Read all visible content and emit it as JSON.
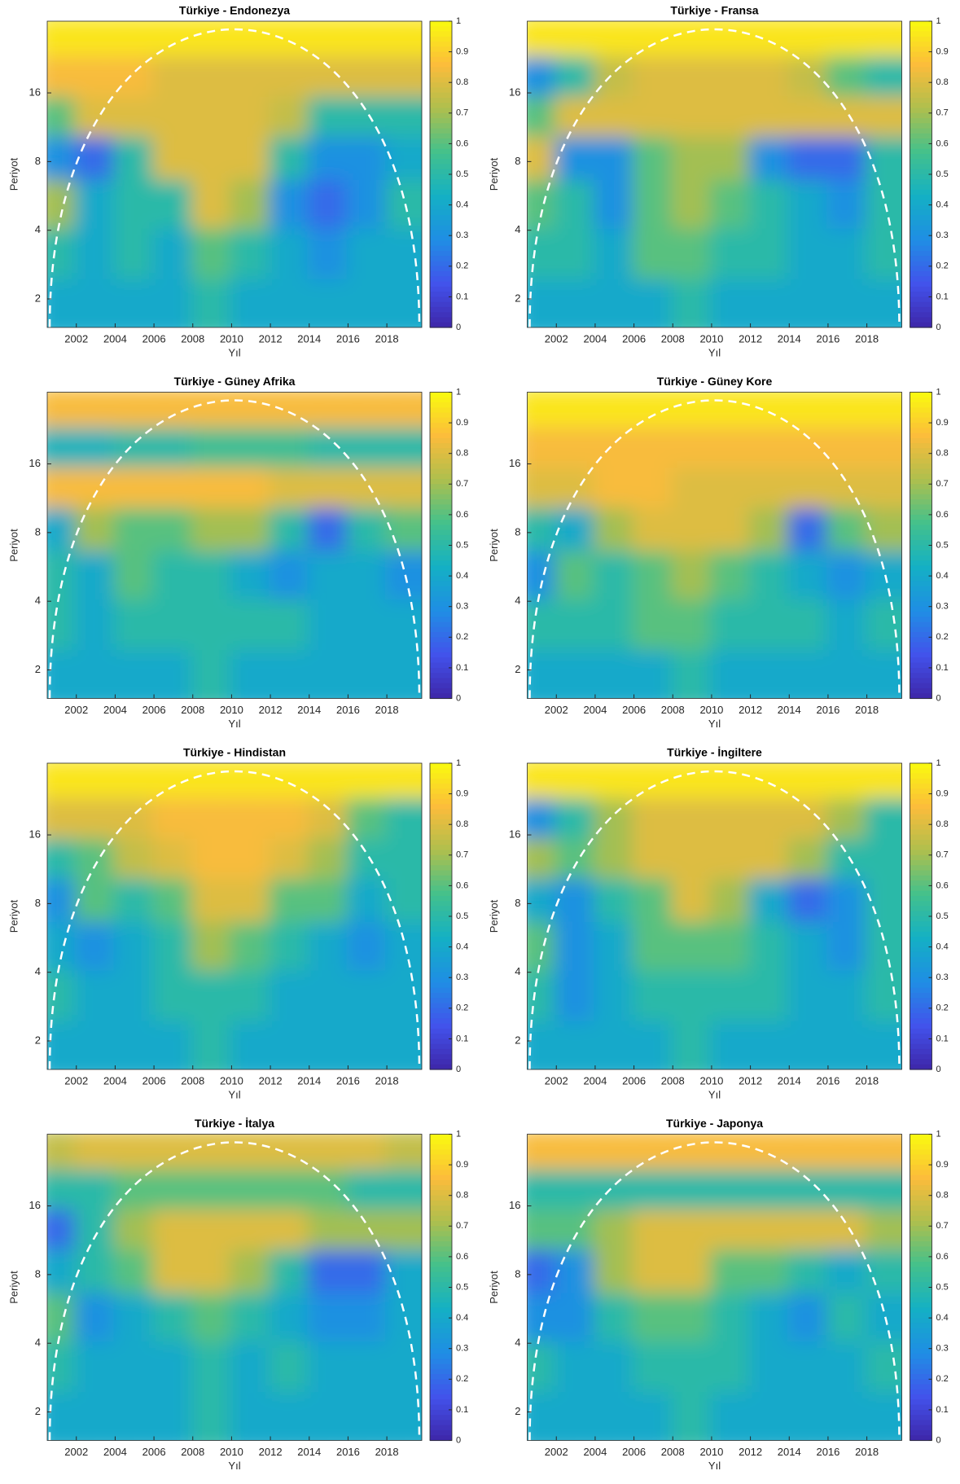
{
  "chart_data": [
    {
      "type": "wavelet_coherence",
      "title": "Türkiye - Endonezya",
      "xlabel": "Yıl",
      "ylabel": "Periyot",
      "xlim": [
        2000.5,
        2019.8
      ],
      "xticks": [
        2002,
        2004,
        2006,
        2008,
        2010,
        2012,
        2014,
        2016,
        2018
      ],
      "ylim": [
        1.5,
        33
      ],
      "yticks": [
        2,
        4,
        8,
        16
      ],
      "ylog": true,
      "clim": [
        0,
        1
      ],
      "cticks": [
        0,
        0.1,
        0.2,
        0.3,
        0.4,
        0.5,
        0.6,
        0.7,
        0.8,
        0.9,
        1
      ],
      "colormap": [
        "#3e26a8",
        "#4253ec",
        "#1f8ee4",
        "#14b0c4",
        "#43c18c",
        "#aebf4d",
        "#fcbc3b",
        "#f9fb0e"
      ],
      "x": [
        2001.5,
        2003.5,
        2005.5,
        2007.5,
        2009.5,
        2011.5,
        2013.5,
        2015.5,
        2017.5,
        2019.5
      ],
      "periods": [
        27,
        18,
        12,
        8,
        5,
        3,
        1.8
      ],
      "z": [
        [
          0.95,
          0.95,
          0.95,
          0.95,
          0.95,
          0.95,
          0.95,
          0.95,
          0.95,
          0.95
        ],
        [
          0.85,
          0.85,
          0.85,
          0.8,
          0.8,
          0.8,
          0.8,
          0.8,
          0.8,
          0.8
        ],
        [
          0.6,
          0.8,
          0.8,
          0.8,
          0.8,
          0.8,
          0.75,
          0.5,
          0.5,
          0.5
        ],
        [
          0.3,
          0.2,
          0.5,
          0.8,
          0.8,
          0.8,
          0.5,
          0.3,
          0.3,
          0.4
        ],
        [
          0.7,
          0.4,
          0.5,
          0.5,
          0.8,
          0.7,
          0.3,
          0.2,
          0.3,
          0.5
        ],
        [
          0.5,
          0.4,
          0.5,
          0.4,
          0.6,
          0.5,
          0.4,
          0.3,
          0.4,
          0.4
        ],
        [
          0.4,
          0.4,
          0.4,
          0.4,
          0.5,
          0.4,
          0.4,
          0.4,
          0.4,
          0.4
        ]
      ]
    },
    {
      "type": "wavelet_coherence",
      "title": "Türkiye - Fransa",
      "xlabel": "Yıl",
      "ylabel": "Periyot",
      "xlim": [
        2000.5,
        2019.8
      ],
      "xticks": [
        2002,
        2004,
        2006,
        2008,
        2010,
        2012,
        2014,
        2016,
        2018
      ],
      "ylim": [
        1.5,
        33
      ],
      "yticks": [
        2,
        4,
        8,
        16
      ],
      "ylog": true,
      "clim": [
        0,
        1
      ],
      "cticks": [
        0,
        0.1,
        0.2,
        0.3,
        0.4,
        0.5,
        0.6,
        0.7,
        0.8,
        0.9,
        1
      ],
      "colormap": [
        "#3e26a8",
        "#4253ec",
        "#1f8ee4",
        "#14b0c4",
        "#43c18c",
        "#aebf4d",
        "#fcbc3b",
        "#f9fb0e"
      ],
      "x": [
        2001.5,
        2003.5,
        2005.5,
        2007.5,
        2009.5,
        2011.5,
        2013.5,
        2015.5,
        2017.5,
        2019.5
      ],
      "periods": [
        27,
        18,
        12,
        8,
        5,
        3,
        1.8
      ],
      "z": [
        [
          0.95,
          0.95,
          0.95,
          0.95,
          0.95,
          0.95,
          0.95,
          0.95,
          0.95,
          0.95
        ],
        [
          0.3,
          0.5,
          0.75,
          0.8,
          0.8,
          0.8,
          0.8,
          0.75,
          0.6,
          0.5
        ],
        [
          0.6,
          0.8,
          0.8,
          0.8,
          0.8,
          0.8,
          0.8,
          0.8,
          0.8,
          0.8
        ],
        [
          0.8,
          0.3,
          0.3,
          0.6,
          0.7,
          0.7,
          0.3,
          0.2,
          0.2,
          0.5
        ],
        [
          0.6,
          0.5,
          0.3,
          0.6,
          0.7,
          0.6,
          0.5,
          0.4,
          0.3,
          0.5
        ],
        [
          0.5,
          0.5,
          0.4,
          0.6,
          0.6,
          0.5,
          0.5,
          0.4,
          0.4,
          0.5
        ],
        [
          0.4,
          0.4,
          0.4,
          0.4,
          0.5,
          0.4,
          0.4,
          0.4,
          0.4,
          0.4
        ]
      ]
    },
    {
      "type": "wavelet_coherence",
      "title": "Türkiye - Güney Afrika",
      "xlabel": "Yıl",
      "ylabel": "Periyot",
      "xlim": [
        2000.5,
        2019.8
      ],
      "xticks": [
        2002,
        2004,
        2006,
        2008,
        2010,
        2012,
        2014,
        2016,
        2018
      ],
      "ylim": [
        1.5,
        33
      ],
      "yticks": [
        2,
        4,
        8,
        16
      ],
      "ylog": true,
      "clim": [
        0,
        1
      ],
      "cticks": [
        0,
        0.1,
        0.2,
        0.3,
        0.4,
        0.5,
        0.6,
        0.7,
        0.8,
        0.9,
        1
      ],
      "colormap": [
        "#3e26a8",
        "#4253ec",
        "#1f8ee4",
        "#14b0c4",
        "#43c18c",
        "#aebf4d",
        "#fcbc3b",
        "#f9fb0e"
      ],
      "x": [
        2001.5,
        2003.5,
        2005.5,
        2007.5,
        2009.5,
        2011.5,
        2013.5,
        2015.5,
        2017.5,
        2019.5
      ],
      "periods": [
        27,
        18,
        12,
        8,
        5,
        3,
        1.8
      ],
      "z": [
        [
          0.85,
          0.85,
          0.85,
          0.85,
          0.85,
          0.85,
          0.85,
          0.85,
          0.85,
          0.85
        ],
        [
          0.45,
          0.45,
          0.5,
          0.5,
          0.55,
          0.55,
          0.55,
          0.5,
          0.5,
          0.5
        ],
        [
          0.85,
          0.85,
          0.85,
          0.85,
          0.85,
          0.85,
          0.8,
          0.8,
          0.8,
          0.8
        ],
        [
          0.4,
          0.7,
          0.6,
          0.6,
          0.7,
          0.7,
          0.5,
          0.2,
          0.5,
          0.6
        ],
        [
          0.5,
          0.4,
          0.6,
          0.5,
          0.5,
          0.4,
          0.3,
          0.4,
          0.4,
          0.3
        ],
        [
          0.5,
          0.4,
          0.5,
          0.5,
          0.5,
          0.5,
          0.5,
          0.4,
          0.4,
          0.4
        ],
        [
          0.4,
          0.4,
          0.4,
          0.4,
          0.5,
          0.4,
          0.4,
          0.4,
          0.4,
          0.4
        ]
      ]
    },
    {
      "type": "wavelet_coherence",
      "title": "Türkiye - Güney Kore",
      "xlabel": "Yıl",
      "ylabel": "Periyot",
      "xlim": [
        2000.5,
        2019.8
      ],
      "xticks": [
        2002,
        2004,
        2006,
        2008,
        2010,
        2012,
        2014,
        2016,
        2018
      ],
      "ylim": [
        1.5,
        33
      ],
      "yticks": [
        2,
        4,
        8,
        16
      ],
      "ylog": true,
      "clim": [
        0,
        1
      ],
      "cticks": [
        0,
        0.1,
        0.2,
        0.3,
        0.4,
        0.5,
        0.6,
        0.7,
        0.8,
        0.9,
        1
      ],
      "colormap": [
        "#3e26a8",
        "#4253ec",
        "#1f8ee4",
        "#14b0c4",
        "#43c18c",
        "#aebf4d",
        "#fcbc3b",
        "#f9fb0e"
      ],
      "x": [
        2001.5,
        2003.5,
        2005.5,
        2007.5,
        2009.5,
        2011.5,
        2013.5,
        2015.5,
        2017.5,
        2019.5
      ],
      "periods": [
        27,
        18,
        12,
        8,
        5,
        3,
        1.8
      ],
      "z": [
        [
          0.95,
          0.95,
          0.95,
          0.95,
          0.95,
          0.95,
          0.95,
          0.95,
          0.95,
          0.95
        ],
        [
          0.85,
          0.85,
          0.85,
          0.85,
          0.85,
          0.85,
          0.85,
          0.85,
          0.85,
          0.85
        ],
        [
          0.8,
          0.8,
          0.85,
          0.85,
          0.8,
          0.8,
          0.8,
          0.8,
          0.8,
          0.8
        ],
        [
          0.5,
          0.4,
          0.7,
          0.8,
          0.8,
          0.8,
          0.7,
          0.2,
          0.6,
          0.7
        ],
        [
          0.3,
          0.6,
          0.5,
          0.6,
          0.7,
          0.6,
          0.5,
          0.4,
          0.3,
          0.4
        ],
        [
          0.5,
          0.5,
          0.5,
          0.6,
          0.6,
          0.5,
          0.5,
          0.5,
          0.4,
          0.5
        ],
        [
          0.4,
          0.4,
          0.4,
          0.4,
          0.5,
          0.4,
          0.4,
          0.4,
          0.4,
          0.4
        ]
      ]
    },
    {
      "type": "wavelet_coherence",
      "title": "Türkiye - Hindistan",
      "xlabel": "Yıl",
      "ylabel": "Periyot",
      "xlim": [
        2000.5,
        2019.8
      ],
      "xticks": [
        2002,
        2004,
        2006,
        2008,
        2010,
        2012,
        2014,
        2016,
        2018
      ],
      "ylim": [
        1.5,
        33
      ],
      "yticks": [
        2,
        4,
        8,
        16
      ],
      "ylog": true,
      "clim": [
        0,
        1
      ],
      "cticks": [
        0,
        0.1,
        0.2,
        0.3,
        0.4,
        0.5,
        0.6,
        0.7,
        0.8,
        0.9,
        1
      ],
      "colormap": [
        "#3e26a8",
        "#4253ec",
        "#1f8ee4",
        "#14b0c4",
        "#43c18c",
        "#aebf4d",
        "#fcbc3b",
        "#f9fb0e"
      ],
      "x": [
        2001.5,
        2003.5,
        2005.5,
        2007.5,
        2009.5,
        2011.5,
        2013.5,
        2015.5,
        2017.5,
        2019.5
      ],
      "periods": [
        27,
        18,
        12,
        8,
        5,
        3,
        1.8
      ],
      "z": [
        [
          0.95,
          0.95,
          0.95,
          0.95,
          0.95,
          0.95,
          0.95,
          0.95,
          0.95,
          0.95
        ],
        [
          0.8,
          0.8,
          0.8,
          0.85,
          0.85,
          0.85,
          0.85,
          0.8,
          0.6,
          0.5
        ],
        [
          0.5,
          0.6,
          0.75,
          0.8,
          0.85,
          0.85,
          0.8,
          0.7,
          0.5,
          0.5
        ],
        [
          0.3,
          0.6,
          0.5,
          0.6,
          0.8,
          0.8,
          0.6,
          0.6,
          0.4,
          0.5
        ],
        [
          0.4,
          0.3,
          0.4,
          0.5,
          0.7,
          0.6,
          0.5,
          0.4,
          0.3,
          0.4
        ],
        [
          0.5,
          0.4,
          0.4,
          0.5,
          0.5,
          0.5,
          0.4,
          0.4,
          0.4,
          0.4
        ],
        [
          0.4,
          0.4,
          0.4,
          0.4,
          0.5,
          0.4,
          0.4,
          0.4,
          0.4,
          0.4
        ]
      ]
    },
    {
      "type": "wavelet_coherence",
      "title": "Türkiye - İngiltere",
      "xlabel": "Yıl",
      "ylabel": "Periyot",
      "xlim": [
        2000.5,
        2019.8
      ],
      "xticks": [
        2002,
        2004,
        2006,
        2008,
        2010,
        2012,
        2014,
        2016,
        2018
      ],
      "ylim": [
        1.5,
        33
      ],
      "yticks": [
        2,
        4,
        8,
        16
      ],
      "ylog": true,
      "clim": [
        0,
        1
      ],
      "cticks": [
        0,
        0.1,
        0.2,
        0.3,
        0.4,
        0.5,
        0.6,
        0.7,
        0.8,
        0.9,
        1
      ],
      "colormap": [
        "#3e26a8",
        "#4253ec",
        "#1f8ee4",
        "#14b0c4",
        "#43c18c",
        "#aebf4d",
        "#fcbc3b",
        "#f9fb0e"
      ],
      "x": [
        2001.5,
        2003.5,
        2005.5,
        2007.5,
        2009.5,
        2011.5,
        2013.5,
        2015.5,
        2017.5,
        2019.5
      ],
      "periods": [
        27,
        18,
        12,
        8,
        5,
        3,
        1.8
      ],
      "z": [
        [
          0.95,
          0.95,
          0.95,
          0.95,
          0.95,
          0.95,
          0.95,
          0.95,
          0.95,
          0.95
        ],
        [
          0.3,
          0.5,
          0.7,
          0.8,
          0.8,
          0.8,
          0.8,
          0.8,
          0.7,
          0.5
        ],
        [
          0.7,
          0.6,
          0.7,
          0.8,
          0.8,
          0.8,
          0.8,
          0.7,
          0.5,
          0.5
        ],
        [
          0.4,
          0.3,
          0.5,
          0.6,
          0.8,
          0.7,
          0.4,
          0.2,
          0.3,
          0.5
        ],
        [
          0.6,
          0.3,
          0.4,
          0.6,
          0.6,
          0.6,
          0.5,
          0.4,
          0.3,
          0.5
        ],
        [
          0.5,
          0.3,
          0.4,
          0.5,
          0.5,
          0.5,
          0.5,
          0.4,
          0.4,
          0.5
        ],
        [
          0.4,
          0.4,
          0.4,
          0.4,
          0.5,
          0.4,
          0.4,
          0.4,
          0.4,
          0.4
        ]
      ]
    },
    {
      "type": "wavelet_coherence",
      "title": "Türkiye - İtalya",
      "xlabel": "Yıl",
      "ylabel": "Periyot",
      "xlim": [
        2000.5,
        2019.8
      ],
      "xticks": [
        2002,
        2004,
        2006,
        2008,
        2010,
        2012,
        2014,
        2016,
        2018
      ],
      "ylim": [
        1.5,
        33
      ],
      "yticks": [
        2,
        4,
        8,
        16
      ],
      "ylog": true,
      "clim": [
        0,
        1
      ],
      "cticks": [
        0,
        0.1,
        0.2,
        0.3,
        0.4,
        0.5,
        0.6,
        0.7,
        0.8,
        0.9,
        1
      ],
      "colormap": [
        "#3e26a8",
        "#4253ec",
        "#1f8ee4",
        "#14b0c4",
        "#43c18c",
        "#aebf4d",
        "#fcbc3b",
        "#f9fb0e"
      ],
      "x": [
        2001.5,
        2003.5,
        2005.5,
        2007.5,
        2009.5,
        2011.5,
        2013.5,
        2015.5,
        2017.5,
        2019.5
      ],
      "periods": [
        27,
        18,
        12,
        8,
        5,
        3,
        1.8
      ],
      "z": [
        [
          0.75,
          0.8,
          0.8,
          0.8,
          0.8,
          0.8,
          0.8,
          0.8,
          0.8,
          0.75
        ],
        [
          0.5,
          0.5,
          0.6,
          0.6,
          0.6,
          0.6,
          0.6,
          0.6,
          0.5,
          0.5
        ],
        [
          0.2,
          0.5,
          0.7,
          0.8,
          0.8,
          0.8,
          0.8,
          0.7,
          0.7,
          0.7
        ],
        [
          0.4,
          0.5,
          0.6,
          0.8,
          0.8,
          0.7,
          0.5,
          0.2,
          0.2,
          0.4
        ],
        [
          0.6,
          0.3,
          0.4,
          0.5,
          0.6,
          0.5,
          0.4,
          0.3,
          0.3,
          0.4
        ],
        [
          0.5,
          0.4,
          0.4,
          0.4,
          0.5,
          0.4,
          0.5,
          0.4,
          0.4,
          0.4
        ],
        [
          0.4,
          0.4,
          0.4,
          0.4,
          0.5,
          0.4,
          0.4,
          0.4,
          0.4,
          0.4
        ]
      ]
    },
    {
      "type": "wavelet_coherence",
      "title": "Türkiye - Japonya",
      "xlabel": "Yıl",
      "ylabel": "Periyot",
      "xlim": [
        2000.5,
        2019.8
      ],
      "xticks": [
        2002,
        2004,
        2006,
        2008,
        2010,
        2012,
        2014,
        2016,
        2018
      ],
      "ylim": [
        1.5,
        33
      ],
      "yticks": [
        2,
        4,
        8,
        16
      ],
      "ylog": true,
      "clim": [
        0,
        1
      ],
      "cticks": [
        0,
        0.1,
        0.2,
        0.3,
        0.4,
        0.5,
        0.6,
        0.7,
        0.8,
        0.9,
        1
      ],
      "colormap": [
        "#3e26a8",
        "#4253ec",
        "#1f8ee4",
        "#14b0c4",
        "#43c18c",
        "#aebf4d",
        "#fcbc3b",
        "#f9fb0e"
      ],
      "x": [
        2001.5,
        2003.5,
        2005.5,
        2007.5,
        2009.5,
        2011.5,
        2013.5,
        2015.5,
        2017.5,
        2019.5
      ],
      "periods": [
        27,
        18,
        12,
        8,
        5,
        3,
        1.8
      ],
      "z": [
        [
          0.85,
          0.85,
          0.85,
          0.85,
          0.85,
          0.85,
          0.85,
          0.85,
          0.85,
          0.85
        ],
        [
          0.5,
          0.5,
          0.5,
          0.5,
          0.5,
          0.5,
          0.5,
          0.5,
          0.5,
          0.5
        ],
        [
          0.6,
          0.6,
          0.7,
          0.8,
          0.8,
          0.8,
          0.8,
          0.8,
          0.8,
          0.7
        ],
        [
          0.2,
          0.3,
          0.7,
          0.8,
          0.8,
          0.6,
          0.6,
          0.5,
          0.4,
          0.5
        ],
        [
          0.3,
          0.3,
          0.5,
          0.6,
          0.6,
          0.5,
          0.4,
          0.3,
          0.5,
          0.4
        ],
        [
          0.5,
          0.4,
          0.4,
          0.5,
          0.5,
          0.5,
          0.4,
          0.4,
          0.4,
          0.5
        ],
        [
          0.4,
          0.4,
          0.4,
          0.4,
          0.5,
          0.4,
          0.4,
          0.4,
          0.4,
          0.4
        ]
      ]
    }
  ]
}
